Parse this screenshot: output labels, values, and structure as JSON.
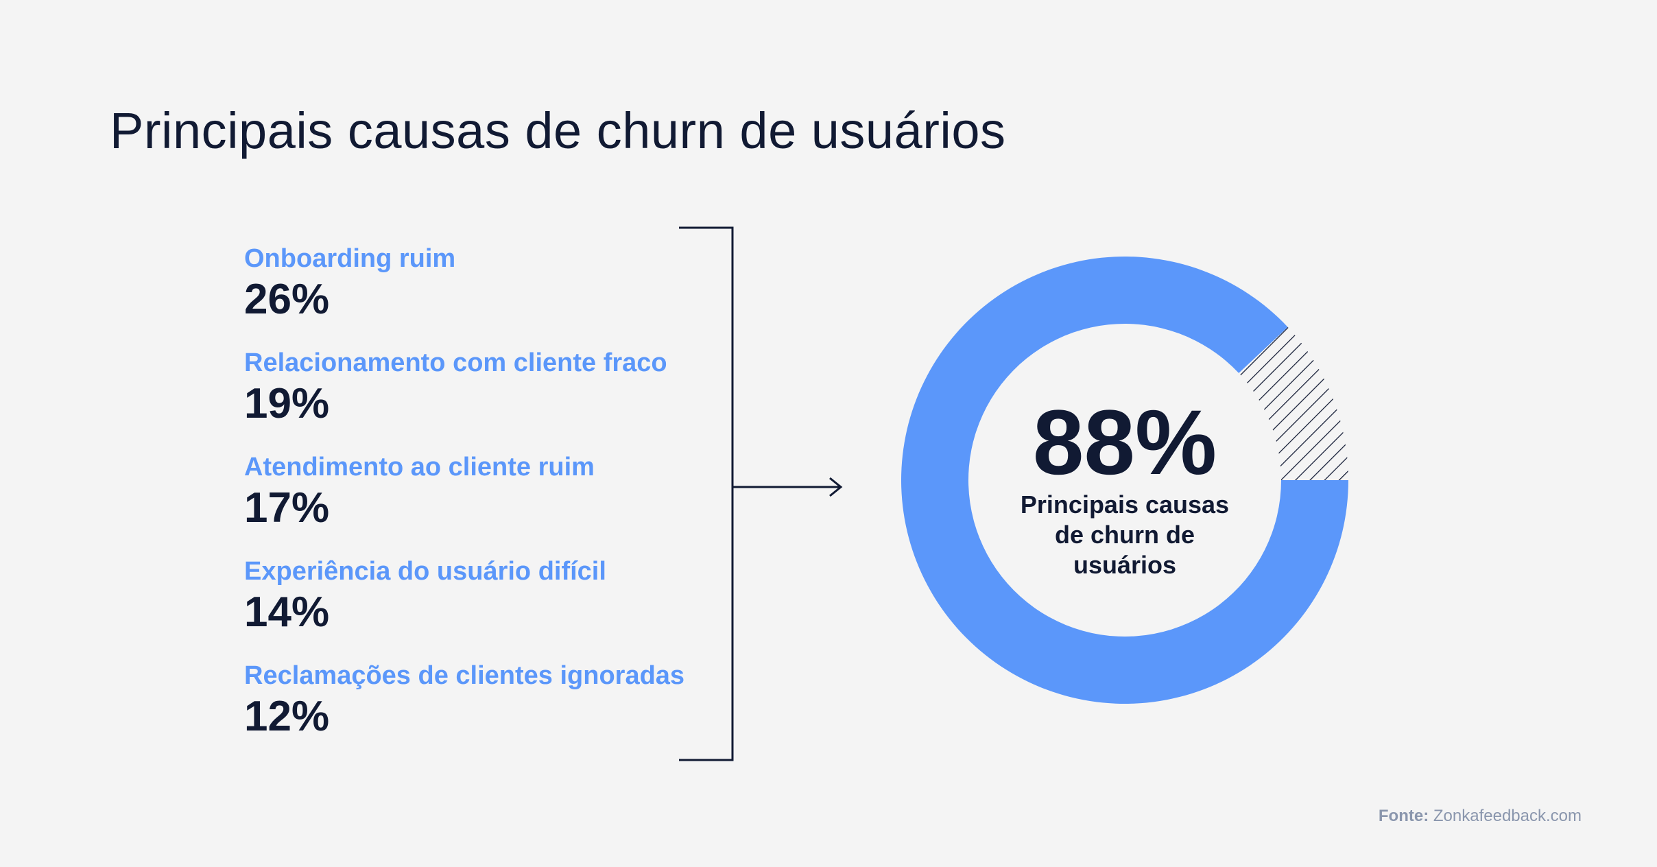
{
  "title": "Principais causas de churn de usuários",
  "causes": [
    {
      "label": "Onboarding ruim",
      "value": "26%"
    },
    {
      "label": "Relacionamento com cliente fraco",
      "value": "19%"
    },
    {
      "label": "Atendimento ao cliente ruim",
      "value": "17%"
    },
    {
      "label": "Experiência do usuário difícil",
      "value": "14%"
    },
    {
      "label": "Reclamações de clientes ignoradas",
      "value": "12%"
    }
  ],
  "donut": {
    "value": "88%",
    "caption_lines": [
      "Principais causas",
      "de churn de",
      "usuários"
    ]
  },
  "source": {
    "prefix": "Fonte:",
    "text": "Zonkafeedback.com"
  },
  "colors": {
    "accent": "#5b97fa",
    "text": "#111a33",
    "background": "#f4f4f4",
    "hatch": "#111a33",
    "source": "#8a96ad"
  },
  "chart_data": {
    "type": "pie",
    "subtype": "donut",
    "categories": [
      "Principais causas de churn de usuários",
      ""
    ],
    "values": [
      88,
      12
    ],
    "hatched_remainder": true,
    "title": "Principais causas de churn de usuários",
    "breakdown": [
      {
        "label": "Onboarding ruim",
        "value": 26
      },
      {
        "label": "Relacionamento com cliente fraco",
        "value": 19
      },
      {
        "label": "Atendimento ao cliente ruim",
        "value": 17
      },
      {
        "label": "Experiência do usuário difícil",
        "value": 14
      },
      {
        "label": "Reclamações de clientes ignoradas",
        "value": 12
      }
    ]
  }
}
